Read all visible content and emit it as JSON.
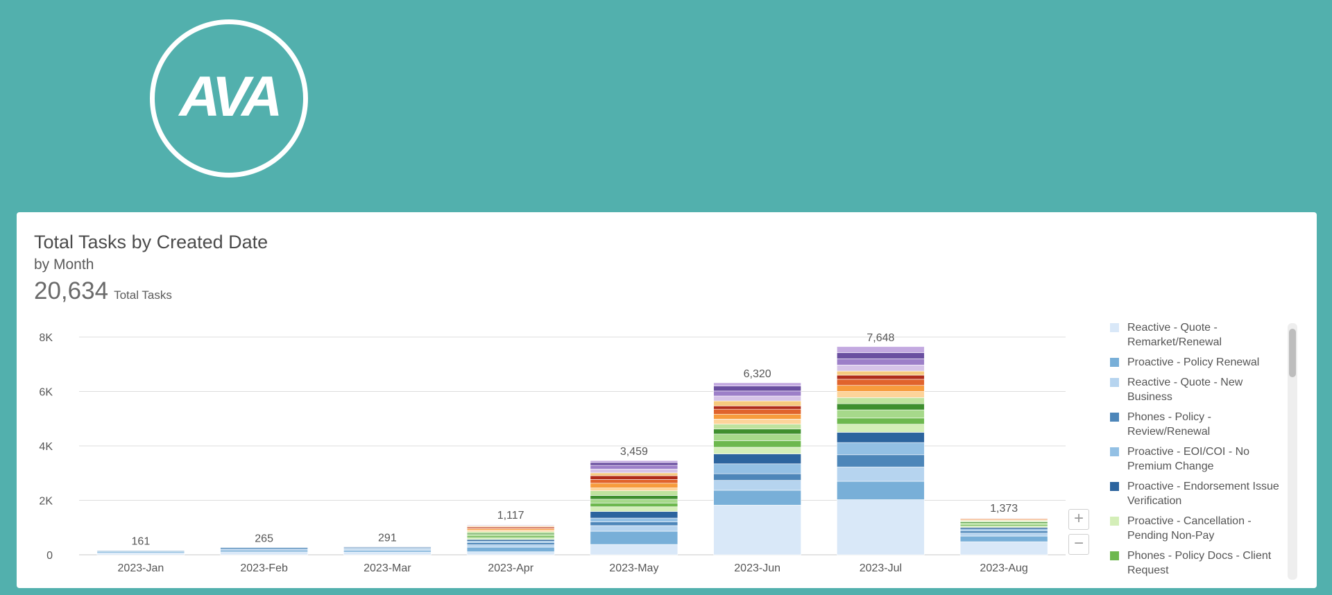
{
  "logo": {
    "text": "AVA"
  },
  "card": {
    "title": "Total Tasks by Created Date",
    "subtitle": "by Month",
    "total_value": "20,634",
    "total_label": "Total Tasks"
  },
  "zoom": {
    "in": "+",
    "out": "−"
  },
  "chart_data": {
    "type": "bar",
    "stacked": true,
    "categories": [
      "2023-Jan",
      "2023-Feb",
      "2023-Mar",
      "2023-Apr",
      "2023-May",
      "2023-Jun",
      "2023-Jul",
      "2023-Aug"
    ],
    "totals": [
      161,
      265,
      291,
      1117,
      3459,
      6320,
      7648,
      1373
    ],
    "total_labels": [
      "161",
      "265",
      "291",
      "1,117",
      "3,459",
      "6,320",
      "7,648",
      "1,373"
    ],
    "ylim": [
      0,
      8000
    ],
    "yticks": [
      0,
      2000,
      4000,
      6000,
      8000
    ],
    "ytick_labels": [
      "0",
      "2K",
      "4K",
      "6K",
      "8K"
    ],
    "grid": true,
    "legend_position": "right",
    "legend": [
      {
        "label": "Reactive - Quote - Remarket/Renewal",
        "color": "#d9e8f8"
      },
      {
        "label": "Proactive - Policy Renewal",
        "color": "#78afd8"
      },
      {
        "label": "Reactive - Quote - New Business",
        "color": "#b6d4ef"
      },
      {
        "label": "Phones - Policy - Review/Renewal",
        "color": "#4d86b9"
      },
      {
        "label": "Proactive - EOI/COI - No Premium Change",
        "color": "#93c0e4"
      },
      {
        "label": "Proactive - Endorsement Issue Verification",
        "color": "#2c649e"
      },
      {
        "label": "Proactive - Cancellation - Pending Non-Pay",
        "color": "#d4eeb8"
      },
      {
        "label": "Phones - Policy Docs - Client Request",
        "color": "#6db84e"
      }
    ],
    "segment_colors": [
      "#d9e8f8",
      "#78afd8",
      "#b6d4ef",
      "#4d86b9",
      "#93c0e4",
      "#2c649e",
      "#d4eeb8",
      "#6db84e",
      "#a6d98a",
      "#3e8f2e",
      "#bfe39e",
      "#fdd49a",
      "#f79b3c",
      "#e0632c",
      "#b02c1a",
      "#f6c97e",
      "#d6c4e8",
      "#9c7fc8",
      "#6a4fa0",
      "#c3a9e0"
    ],
    "series_fractions": [
      [
        0.45,
        0.3,
        0.1,
        0.15
      ],
      [
        0.4,
        0.25,
        0.15,
        0.2
      ],
      [
        0.35,
        0.2,
        0.15,
        0.1,
        0.1,
        0.1
      ],
      [
        0.1,
        0.15,
        0.08,
        0.07,
        0.05,
        0.05,
        0.06,
        0.06,
        0.05,
        0.04,
        0.05,
        0.05,
        0.04,
        0.04,
        0.03,
        0.03,
        0.02,
        0.02,
        0.01
      ],
      [
        0.11,
        0.14,
        0.06,
        0.04,
        0.04,
        0.07,
        0.05,
        0.04,
        0.04,
        0.04,
        0.05,
        0.03,
        0.05,
        0.04,
        0.04,
        0.03,
        0.04,
        0.04,
        0.03,
        0.02
      ],
      [
        0.3,
        0.09,
        0.06,
        0.04,
        0.06,
        0.06,
        0.04,
        0.04,
        0.04,
        0.03,
        0.03,
        0.03,
        0.03,
        0.03,
        0.02,
        0.03,
        0.03,
        0.03,
        0.03,
        0.02
      ],
      [
        0.27,
        0.09,
        0.07,
        0.06,
        0.06,
        0.05,
        0.04,
        0.03,
        0.04,
        0.03,
        0.03,
        0.03,
        0.03,
        0.03,
        0.02,
        0.02,
        0.03,
        0.03,
        0.03,
        0.03
      ],
      [
        0.35,
        0.15,
        0.08,
        0.06,
        0.05,
        0.04,
        0.04,
        0.04,
        0.04,
        0.03,
        0.03,
        0.02,
        0.02,
        0.02,
        0.01,
        0.01,
        0.01
      ]
    ]
  }
}
